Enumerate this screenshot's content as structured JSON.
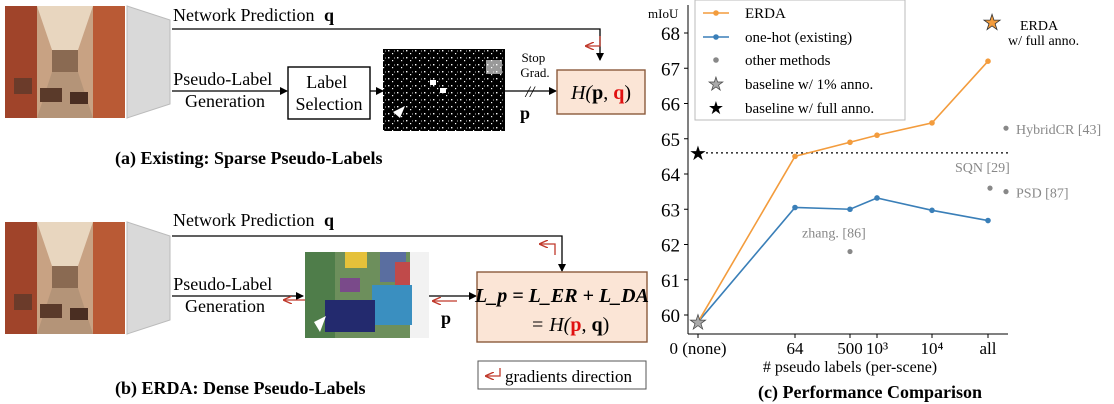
{
  "panel_a": {
    "caption": "(a) Existing: Sparse Pseudo-Labels",
    "network_prediction": "Network Prediction",
    "q_symbol": "q",
    "pseudo_label_line1": "Pseudo-Label",
    "pseudo_label_line2": "Generation",
    "label_selection_line1": "Label",
    "label_selection_line2": "Selection",
    "stop_grad_line1": "Stop",
    "stop_grad_line2": "Grad.",
    "p_symbol": "p",
    "loss_prefix": "H(",
    "loss_p": "p",
    "loss_comma": ", ",
    "loss_q": "q",
    "loss_suffix": ")"
  },
  "panel_b": {
    "caption": "(b) ERDA: Dense Pseudo-Labels",
    "network_prediction": "Network Prediction",
    "q_symbol": "q",
    "pseudo_label_line1": "Pseudo-Label",
    "pseudo_label_line2": "Generation",
    "p_symbol": "p",
    "loss_line1": "L_p = L_ER + L_DA",
    "loss_line2_prefix": "= H(",
    "loss_p": "p",
    "loss_comma": ", ",
    "loss_q": "q",
    "loss_suffix": ")",
    "legend_gradients": "gradients direction"
  },
  "chart_data": {
    "type": "line",
    "title": "(c) Performance Comparison",
    "xlabel": "# pseudo labels (per-scene)",
    "ylabel": "mIoU",
    "ylim": [
      59.6,
      68.4
    ],
    "yticks": [
      60,
      61,
      62,
      63,
      64,
      65,
      66,
      67,
      68
    ],
    "xticks": [
      "0 (none)",
      "64",
      "500",
      "10³",
      "10⁴",
      "all"
    ],
    "series": [
      {
        "name": "ERDA",
        "color": "#f39c3d",
        "points": [
          [
            "0 (none)",
            59.8
          ],
          [
            "64",
            64.5
          ],
          [
            "500",
            64.9
          ],
          [
            "10³",
            65.1
          ],
          [
            "10⁴",
            65.45
          ],
          [
            "all",
            67.2
          ]
        ]
      },
      {
        "name": "one-hot (existing)",
        "color": "#3a7fb8",
        "points": [
          [
            "0 (none)",
            59.8
          ],
          [
            "64",
            63.05
          ],
          [
            "500",
            63.0
          ],
          [
            "10³",
            63.32
          ],
          [
            "10⁴",
            62.97
          ],
          [
            "all",
            62.68
          ]
        ]
      }
    ],
    "other_methods": [
      {
        "label": "zhang. [86]",
        "x": "500",
        "y": 61.8
      },
      {
        "label": "SQN [29]",
        "x": "10⁴+",
        "y": 63.6
      },
      {
        "label": "PSD [87]",
        "x": "all+",
        "y": 63.5
      },
      {
        "label": "HybridCR [43]",
        "x": "all+",
        "y": 65.3
      }
    ],
    "baseline_1pct": 59.8,
    "baseline_full": 64.6,
    "erda_full": {
      "label_line1": "ERDA",
      "label_line2": "w/ full anno.",
      "y": 68.3
    },
    "legend": [
      {
        "label": "ERDA",
        "marker": "orange-line-dot"
      },
      {
        "label": "one-hot (existing)",
        "marker": "blue-line-dot"
      },
      {
        "label": "other methods",
        "marker": "gray-dot"
      },
      {
        "label": "baseline w/ 1% anno.",
        "marker": "gray-star"
      },
      {
        "label": "baseline w/ full anno.",
        "marker": "black-star"
      }
    ],
    "legend_position": "top-left"
  }
}
